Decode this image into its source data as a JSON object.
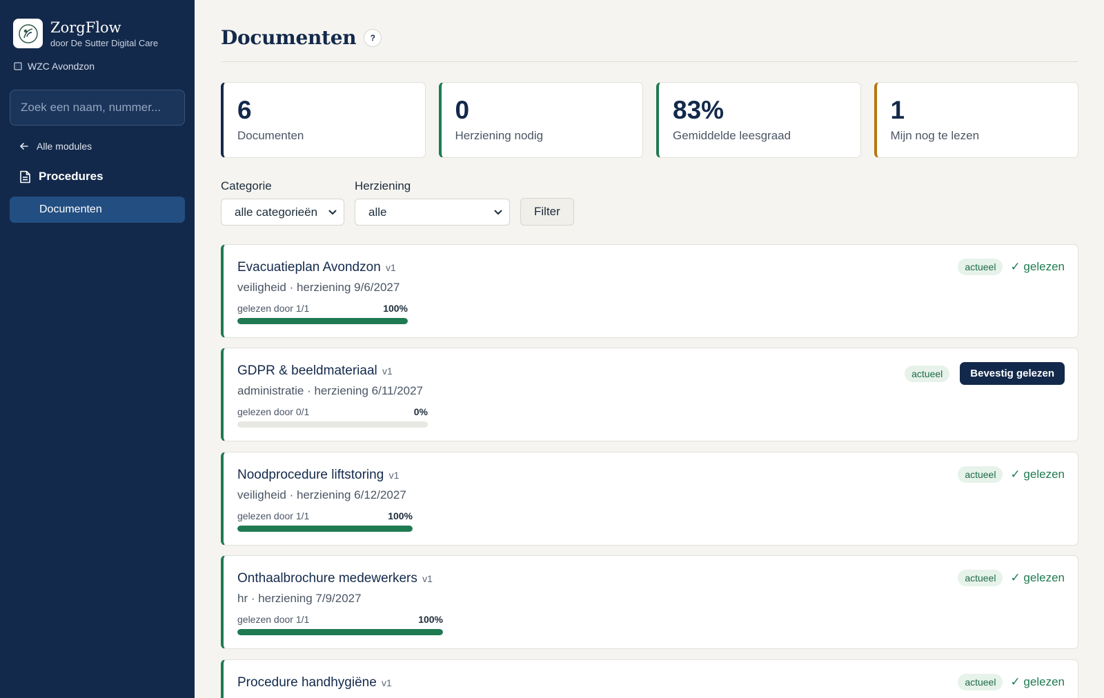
{
  "app": {
    "name": "ZorgFlow",
    "subtitle": "door De Sutter Digital Care",
    "organization": "WZC Avondzon"
  },
  "sidebar": {
    "search_placeholder": "Zoek een naam, nummer...",
    "back_label": "Alle modules",
    "section_label": "Procedures",
    "active_item": "Documenten"
  },
  "page": {
    "title": "Documenten",
    "help": "?"
  },
  "stats": [
    {
      "value": "6",
      "label": "Documenten",
      "accent": "#13294b"
    },
    {
      "value": "0",
      "label": "Herziening nodig",
      "accent": "#1f7a52"
    },
    {
      "value": "83%",
      "label": "Gemiddelde leesgraad",
      "accent": "#1f7a52"
    },
    {
      "value": "1",
      "label": "Mijn nog te lezen",
      "accent": "#b5760f"
    }
  ],
  "filters": {
    "category_label": "Categorie",
    "category_value": "alle categorieën",
    "revision_label": "Herziening",
    "revision_value": "alle",
    "button": "Filter"
  },
  "documents": [
    {
      "title": "Evacuatieplan Avondzon",
      "version": "v1",
      "subtitle": "veiligheid · herziening 9/6/2027",
      "read_by": "gelezen door 1/1",
      "percent": "100%",
      "progress": 1.0,
      "status": "actueel",
      "read_label": "✓ gelezen"
    },
    {
      "title": "GDPR & beeldmateriaal",
      "version": "v1",
      "subtitle": "administratie · herziening 6/11/2027",
      "read_by": "gelezen door 0/1",
      "percent": "0%",
      "progress": 0.0,
      "status": "actueel",
      "action": "Bevestig gelezen"
    },
    {
      "title": "Noodprocedure liftstoring",
      "version": "v1",
      "subtitle": "veiligheid · herziening 6/12/2027",
      "read_by": "gelezen door 1/1",
      "percent": "100%",
      "progress": 1.0,
      "status": "actueel",
      "read_label": "✓ gelezen"
    },
    {
      "title": "Onthaalbrochure medewerkers",
      "version": "v1",
      "subtitle": "hr · herziening 7/9/2027",
      "read_by": "gelezen door 1/1",
      "percent": "100%",
      "progress": 1.0,
      "status": "actueel",
      "read_label": "✓ gelezen"
    },
    {
      "title": "Procedure handhygiëne",
      "version": "v1",
      "status": "actueel",
      "read_label": "✓ gelezen"
    }
  ],
  "colors": {
    "sidebar": "#13294b",
    "accent_green": "#1f7a52",
    "accent_amber": "#b5760f"
  }
}
